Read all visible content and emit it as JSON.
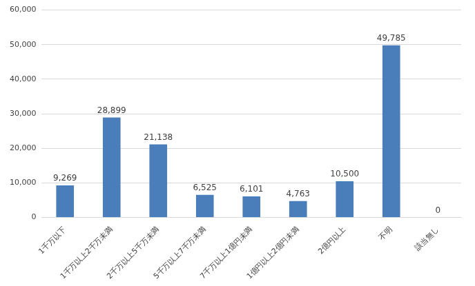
{
  "chart_data": {
    "type": "bar",
    "categories": [
      "1千万以下",
      "1千万以上2千万未満",
      "2千万以上5千万未満",
      "5千万以上7千万未満",
      "7千万以上1億円未満",
      "1億円以上2億円未満",
      "2億円以上",
      "不明",
      "該当無し"
    ],
    "values": [
      9269,
      28899,
      21138,
      6525,
      6101,
      4763,
      10500,
      49785,
      0
    ],
    "value_labels": [
      "9,269",
      "28,899",
      "21,138",
      "6,525",
      "6,101",
      "4,763",
      "10,500",
      "49,785",
      "0"
    ],
    "data_labels": true,
    "color": "#4a7ebb",
    "ylim": [
      0,
      60000
    ],
    "yticks": [
      0,
      {
        "value": 10000,
        "label": "10,000"
      },
      {
        "value": 20000,
        "label": "20,000"
      },
      {
        "value": 30000,
        "label": "30,000"
      },
      {
        "value": 40000,
        "label": "40,000"
      },
      {
        "value": 50000,
        "label": "50,000"
      },
      {
        "value": 60000,
        "label": "60,000"
      }
    ],
    "grid": true
  }
}
